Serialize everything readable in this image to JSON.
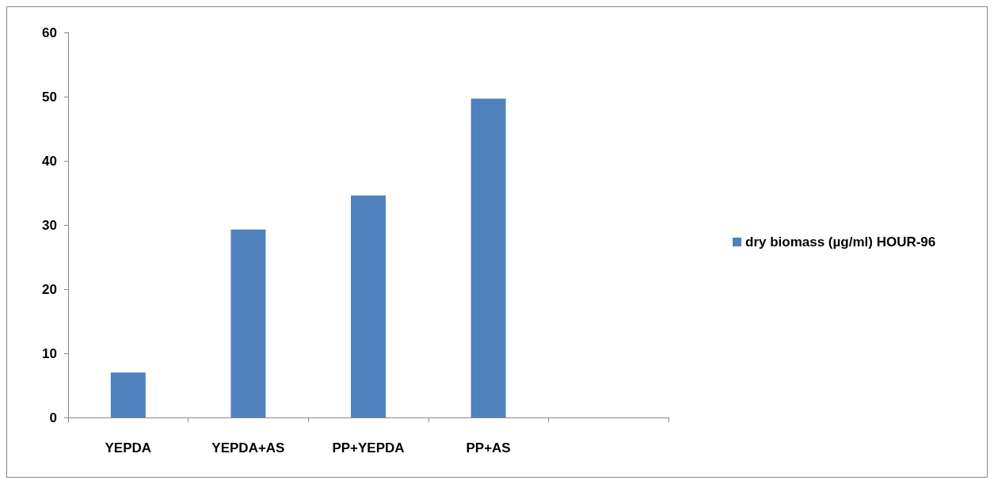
{
  "chart_data": {
    "type": "bar",
    "categories": [
      "YEPDA",
      "YEPDA+AS",
      "PP+YEPDA",
      "PP+AS",
      null
    ],
    "series": [
      {
        "name": "dry biomass (µg/ml) HOUR-96",
        "color": "#4f81bd",
        "values": [
          7.0,
          29.3,
          34.6,
          49.7,
          null
        ]
      }
    ],
    "ylim": [
      0,
      60
    ],
    "yticks": [
      0,
      10,
      20,
      30,
      40,
      50,
      60
    ],
    "grid": false,
    "legend": "right"
  }
}
